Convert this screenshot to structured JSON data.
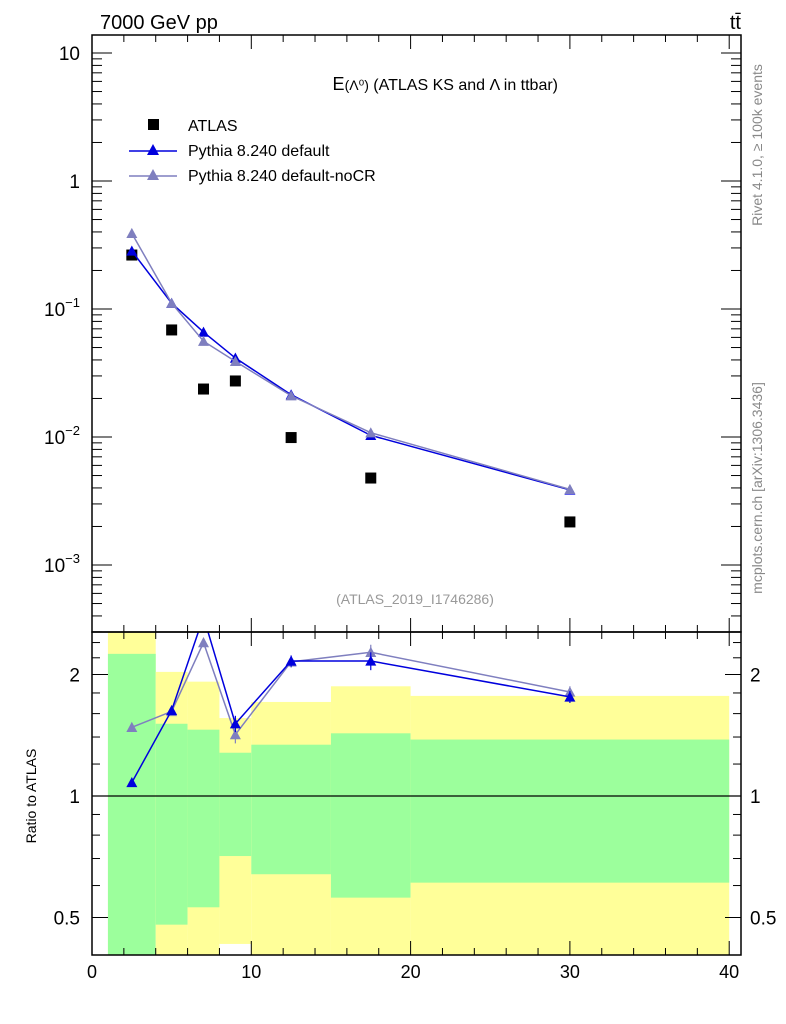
{
  "header": {
    "left_label": "7000 GeV pp",
    "right_label": "tt̄"
  },
  "side_labels": {
    "rivet": "Rivet 4.1.0, ≥ 100k events",
    "mcplots": "mcplots.cern.ch [arXiv:1306.3436]"
  },
  "colors": {
    "data": "#000000",
    "default": "#0000dd",
    "nocr": "#7f7fbf",
    "band_inner": "#9cff9c",
    "band_outer": "#ffff99"
  },
  "chart_data": [
    {
      "type": "scatter",
      "title_prefix": "E",
      "title_symbol": "(Λ⁰)",
      "title_rest": " (ATLAS KS and Λ in ttbar)",
      "analysis_id": "(ATLAS_2019_I1746286)",
      "yscale": "log",
      "ylim": [
        0.0003,
        13.6
      ],
      "xlim": [
        0,
        40.75
      ],
      "ytick_labels": [
        {
          "value": 10,
          "base": "10",
          "exp": ""
        },
        {
          "value": 1,
          "base": "1",
          "exp": ""
        },
        {
          "value": 0.1,
          "base": "10",
          "exp": "−1"
        },
        {
          "value": 0.01,
          "base": "10",
          "exp": "−2"
        },
        {
          "value": 0.001,
          "base": "10",
          "exp": "−3"
        }
      ],
      "legend_position": "top-left",
      "x": [
        2.5,
        5,
        7,
        9,
        12.5,
        17.5,
        30
      ],
      "series": [
        {
          "name": "ATLAS",
          "key": "data",
          "marker": "square",
          "values": [
            0.264,
            0.0686,
            0.0237,
            0.0274,
            0.0099,
            0.00478,
            0.00217
          ]
        },
        {
          "name": "Pythia 8.240 default",
          "key": "default",
          "marker": "triangle",
          "values": [
            0.284,
            0.111,
            0.066,
            0.0414,
            0.0214,
            0.0103,
            0.00386
          ]
        },
        {
          "name": "Pythia 8.240 default-noCR",
          "key": "nocr",
          "marker": "triangle",
          "values": [
            0.39,
            0.111,
            0.056,
            0.039,
            0.021,
            0.0108,
            0.0039
          ]
        }
      ]
    },
    {
      "type": "line",
      "ylabel": "Ratio to ATLAS",
      "xlabel": "",
      "yscale": "log",
      "ylim": [
        0.4,
        2.54
      ],
      "xlim": [
        0,
        40.75
      ],
      "xticks": [
        0,
        10,
        20,
        30,
        40
      ],
      "yticks": [
        0.5,
        1,
        2
      ],
      "bins": [
        [
          1,
          4
        ],
        [
          4,
          6
        ],
        [
          6,
          8
        ],
        [
          8,
          10
        ],
        [
          10,
          15
        ],
        [
          15,
          20
        ],
        [
          20,
          40
        ]
      ],
      "band_inner": [
        [
          0.3,
          2.25
        ],
        [
          0.48,
          1.51
        ],
        [
          0.53,
          1.46
        ],
        [
          0.71,
          1.28
        ],
        [
          0.64,
          1.34
        ],
        [
          0.56,
          1.43
        ],
        [
          0.61,
          1.38
        ]
      ],
      "band_outer": [
        [
          0.3,
          3.0
        ],
        [
          0.3,
          2.03
        ],
        [
          0.3,
          1.92
        ],
        [
          0.43,
          1.56
        ],
        [
          0.3,
          1.71
        ],
        [
          0.3,
          1.87
        ],
        [
          0.3,
          1.77
        ]
      ],
      "x": [
        2.5,
        5,
        7,
        9,
        12.5,
        17.5,
        30
      ],
      "series": [
        {
          "name": "Pythia 8.240 default",
          "key": "default",
          "values": [
            1.08,
            1.63,
            2.78,
            1.51,
            2.16,
            2.16,
            1.76
          ],
          "yerr": [
            0.01,
            0.03,
            0.05,
            0.07,
            0.07,
            0.11,
            0.06
          ]
        },
        {
          "name": "Pythia 8.240 default-noCR",
          "key": "nocr",
          "values": [
            1.48,
            1.62,
            2.4,
            1.42,
            2.15,
            2.27,
            1.81
          ],
          "yerr": [
            0.01,
            0.03,
            0.05,
            0.07,
            0.07,
            0.1,
            0.06
          ]
        }
      ]
    }
  ]
}
